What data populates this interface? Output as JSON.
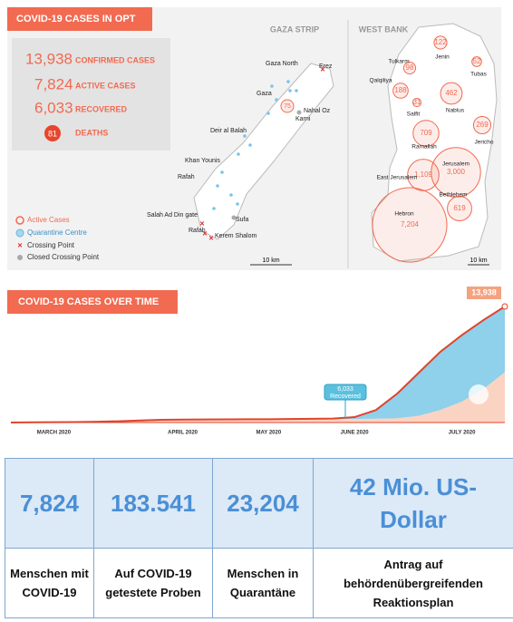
{
  "header": {
    "title": "COVID-19 CASES IN OPT"
  },
  "summary": {
    "confirmed": {
      "number": "13,938",
      "label": "CONFIRMED CASES"
    },
    "active": {
      "number": "7,824",
      "label": "ACTIVE CASES"
    },
    "recovered": {
      "number": "6,033",
      "label": "RECOVERED"
    },
    "deaths": {
      "number": "81",
      "label": "DEATHS"
    }
  },
  "legend": [
    "Active Cases",
    "Quarantine Centre",
    "Crossing Point",
    "Closed Crossing Point"
  ],
  "gaza": {
    "title": "GAZA STRIP",
    "places": [
      "Gaza North",
      "Erez",
      "Gaza",
      "Nahal Oz",
      "Karni",
      "Deir al Balah",
      "Khan Younis",
      "Rafah",
      "Salah Ad Din gate",
      "Rafah",
      "Kerem Shalom",
      "Sufa"
    ],
    "cases": "75",
    "scale": "10 km"
  },
  "west_bank": {
    "title": "WEST BANK",
    "districts": [
      {
        "name": "Jenin",
        "cases": 122,
        "label": "122"
      },
      {
        "name": "Tubas",
        "cases": 52,
        "label": "52"
      },
      {
        "name": "Tulkarm",
        "cases": 98,
        "label": "98"
      },
      {
        "name": "Qalqiliya",
        "cases": 188,
        "label": "188"
      },
      {
        "name": "Salfit",
        "cases": 31,
        "label": "31"
      },
      {
        "name": "Nablus",
        "cases": 462,
        "label": "462"
      },
      {
        "name": "Jericho",
        "cases": 269,
        "label": "269"
      },
      {
        "name": "Ramallah",
        "cases": 709,
        "label": "709"
      },
      {
        "name": "Jerusalem",
        "cases": 3000,
        "label": "3,000"
      },
      {
        "name": "East Jerusalem",
        "cases": 1109,
        "label": "1,109"
      },
      {
        "name": "Bethlehem",
        "cases": 619,
        "label": "619"
      },
      {
        "name": "Hebron",
        "cases": 7204,
        "label": "7,204"
      }
    ],
    "scale": "10 km"
  },
  "chart_data": {
    "type": "area",
    "title": "COVID-19 CASES OVER TIME",
    "categories": [
      null,
      null,
      "MARCH 2020",
      null,
      null,
      null,
      null,
      null,
      "APRIL 2020",
      null,
      null,
      null,
      "MAY 2020",
      null,
      null,
      null,
      "JUNE 2020",
      null,
      null,
      null,
      null,
      "JULY 2020",
      null,
      null
    ],
    "series": [
      {
        "color": "#fbd3c2",
        "values": [
          0,
          0,
          0,
          5,
          20,
          50,
          100,
          200,
          300,
          340,
          360,
          370,
          380,
          390,
          400,
          420,
          430,
          450,
          500,
          800,
          1500,
          2500,
          4000,
          6033
        ]
      },
      {
        "color": "#8fd0ea",
        "values": [
          0,
          30,
          40,
          55,
          80,
          100,
          150,
          120,
          50,
          30,
          20,
          20,
          20,
          30,
          50,
          60,
          220,
          1050,
          3000,
          5200,
          7000,
          8000,
          8300,
          7824
        ]
      },
      {
        "color": "#e0452b",
        "values": [
          0,
          30,
          40,
          60,
          100,
          150,
          250,
          320,
          350,
          370,
          380,
          390,
          400,
          420,
          450,
          480,
          650,
          1500,
          3500,
          6000,
          8500,
          10500,
          12300,
          13938
        ]
      }
    ],
    "annotation_number": "6,033",
    "annotation_text": "Recovered",
    "end_label": "13,938"
  },
  "table": {
    "rows": [
      [
        "7,824",
        "183.541",
        "23,204",
        "42 Mio. US-Dollar"
      ],
      [
        "Menschen mit COVID-19",
        "Auf COVID-19 getestete Proben",
        "Menschen in Quarantäne",
        "Antrag auf behördenübergreifenden Reaktionsplan"
      ]
    ]
  }
}
